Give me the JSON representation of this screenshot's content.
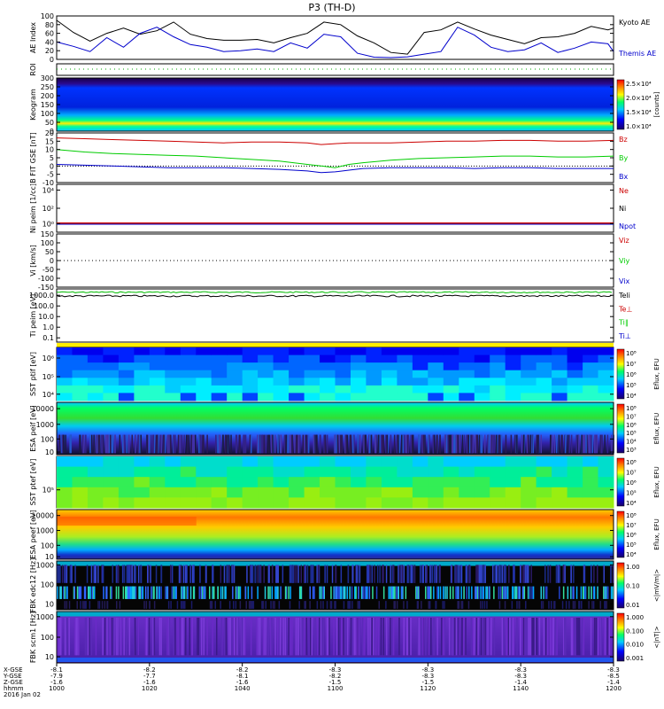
{
  "title": "P3 (TH-D)",
  "chart_data": [
    {
      "type": "line",
      "panel": "ae-index",
      "ylabel": "AE Index",
      "ylim": [
        0,
        100
      ],
      "yticks": [
        "100",
        "80",
        "60",
        "40",
        "20",
        "0"
      ],
      "x_minutes": [
        1000,
        1006,
        1012,
        1018,
        1024,
        1030,
        1036,
        1042,
        1048,
        1054,
        1060,
        1066,
        1072,
        1078,
        1084,
        1090,
        1096,
        1102,
        1108,
        1114,
        1120,
        1126,
        1132,
        1138,
        1144,
        1150,
        1156,
        1162,
        1168,
        1174,
        1180,
        1186,
        1192,
        1198,
        1200
      ],
      "series": [
        {
          "name": "Kyoto AE",
          "color": "#000000",
          "values": [
            90,
            62,
            42,
            60,
            72,
            58,
            66,
            86,
            58,
            48,
            44,
            44,
            46,
            38,
            50,
            60,
            86,
            80,
            54,
            38,
            16,
            12,
            62,
            68,
            86,
            70,
            56,
            46,
            36,
            50,
            52,
            60,
            76,
            68,
            72
          ]
        },
        {
          "name": "Themis AE",
          "color": "#0000cc",
          "values": [
            40,
            30,
            18,
            50,
            28,
            60,
            74,
            52,
            34,
            28,
            18,
            20,
            24,
            18,
            38,
            26,
            58,
            52,
            14,
            5,
            4,
            6,
            12,
            18,
            74,
            56,
            28,
            18,
            22,
            38,
            16,
            26,
            40,
            36,
            18
          ]
        }
      ]
    },
    {
      "type": "line",
      "panel": "roi",
      "ylabel": "ROI",
      "series": [
        {
          "name": "ROI",
          "color": "#00aa00",
          "values": [
            0,
            0
          ]
        }
      ]
    },
    {
      "type": "heatmap",
      "panel": "keogram",
      "ylabel": "Keogram",
      "ylim": [
        0,
        300
      ],
      "yticks": [
        "300",
        "250",
        "200",
        "150",
        "100",
        "50",
        "0"
      ],
      "colorbar": {
        "unit": "[counts]",
        "ticks": [
          "2.5×10⁴",
          "2.0×10⁴",
          "1.5×10⁴",
          "1.0×10⁴"
        ]
      }
    },
    {
      "type": "line",
      "panel": "b-field",
      "ylabel": "B FIT GSE [nT]",
      "ylim": [
        -10,
        20
      ],
      "yticks": [
        "20",
        "15",
        "10",
        "5",
        "0",
        "-5",
        "-10"
      ],
      "x_minutes": [
        1000,
        1010,
        1020,
        1030,
        1040,
        1050,
        1060,
        1070,
        1080,
        1090,
        1095,
        1100,
        1105,
        1110,
        1120,
        1130,
        1140,
        1150,
        1160,
        1170,
        1180,
        1190,
        1200
      ],
      "series": [
        {
          "name": "Bz",
          "color": "#cc0000",
          "values": [
            17,
            16.5,
            16,
            15.5,
            15,
            14.5,
            14,
            14.5,
            14.5,
            14,
            13,
            13.5,
            14,
            14,
            14,
            14.5,
            15,
            15,
            15.5,
            15.5,
            15,
            15,
            15.5
          ]
        },
        {
          "name": "By",
          "color": "#00cc00",
          "values": [
            10,
            8.5,
            7.5,
            7,
            6.5,
            6,
            5,
            4,
            3,
            1,
            0,
            -1,
            1,
            2,
            3.5,
            4.5,
            5,
            5.5,
            6,
            6,
            5.5,
            5.5,
            6
          ]
        },
        {
          "name": "Bx",
          "color": "#0000cc",
          "values": [
            1,
            0.5,
            0,
            -0.5,
            -1,
            -1,
            -1,
            -1.5,
            -2,
            -3,
            -4,
            -3.5,
            -2.5,
            -1.5,
            -1,
            -1,
            -1,
            -1.5,
            -1,
            -1,
            -1.5,
            -1.5,
            -1.5
          ]
        }
      ]
    },
    {
      "type": "line",
      "panel": "density",
      "ylabel": "Ni peim [1/cc]",
      "yticks": [
        "10⁴",
        "10²",
        "10⁰"
      ],
      "series": [
        {
          "name": "Ne",
          "color": "#cc0000",
          "values": [
            1,
            1
          ]
        },
        {
          "name": "Ni",
          "color": "#000000",
          "values": [
            1,
            1
          ]
        },
        {
          "name": "Npot",
          "color": "#0000cc",
          "values": [
            1,
            1
          ]
        }
      ]
    },
    {
      "type": "line",
      "panel": "velocity",
      "ylabel": "Vi [km/s]",
      "ylim": [
        -150,
        150
      ],
      "yticks": [
        "150",
        "100",
        "50",
        "0",
        "-50",
        "-100",
        "-150"
      ],
      "series": [
        {
          "name": "Viz",
          "color": "#cc0000",
          "values": [
            0,
            0
          ]
        },
        {
          "name": "Viy",
          "color": "#00cc00",
          "values": [
            0,
            0
          ]
        },
        {
          "name": "Vix",
          "color": "#0000cc",
          "values": [
            0,
            0
          ]
        }
      ]
    },
    {
      "type": "line",
      "panel": "temperature",
      "ylabel": "Ti peim [eV]",
      "yticks": [
        "1000.0",
        "100.0",
        "10.0",
        "1.0",
        "0.1"
      ],
      "series": [
        {
          "name": "Teli",
          "color": "#000000",
          "values": [
            1200,
            1200
          ]
        },
        {
          "name": "Te⊥",
          "color": "#cc0000",
          "values": [
            2000,
            2000
          ]
        },
        {
          "name": "Ti∥",
          "color": "#00cc00",
          "values": [
            2200,
            2200
          ]
        },
        {
          "name": "Ti⊥",
          "color": "#0000cc",
          "values": [
            2000,
            2000
          ]
        }
      ]
    },
    {
      "type": "heatmap",
      "panel": "sst-ions",
      "ylabel": "SST ptif [eV]",
      "yticks": [
        "10⁶",
        "10⁵",
        "10⁴"
      ],
      "colorbar": {
        "unit": "Eflux, EFU",
        "ticks": [
          "10⁸",
          "10⁷",
          "10⁶",
          "10⁵",
          "10⁴"
        ]
      }
    },
    {
      "type": "heatmap",
      "panel": "esa-ions",
      "ylabel": "ESA peif [eV]",
      "yticks": [
        "10000",
        "1000",
        "100",
        "10"
      ],
      "colorbar": {
        "unit": "Eflux, EFU",
        "ticks": [
          "10⁸",
          "10⁷",
          "10⁶",
          "10⁵",
          "10⁴",
          "10³"
        ]
      }
    },
    {
      "type": "heatmap",
      "panel": "sst-electrons",
      "ylabel": "SST ptef [eV]",
      "yticks": [
        "10⁵"
      ],
      "colorbar": {
        "unit": "Eflux, EFU",
        "ticks": [
          "10⁸",
          "10⁷",
          "10⁶",
          "10⁵",
          "10⁴"
        ]
      }
    },
    {
      "type": "heatmap",
      "panel": "esa-electrons",
      "ylabel": "ESA peef [eV]",
      "yticks": [
        "10000",
        "1000",
        "100",
        "10"
      ],
      "colorbar": {
        "unit": "Eflux, EFU",
        "ticks": [
          "10⁸",
          "10⁷",
          "10⁶",
          "10⁵",
          "10⁴"
        ]
      }
    },
    {
      "type": "heatmap",
      "panel": "fbk-edc",
      "ylabel": "FBK edc12 [Hz]",
      "yticks": [
        "1000",
        "100",
        "10"
      ],
      "colorbar": {
        "unit": "<|mV/m|>",
        "ticks": [
          "1.00",
          "0.10",
          "0.01"
        ]
      }
    },
    {
      "type": "heatmap",
      "panel": "fbk-scm",
      "ylabel": "FBK scm1 [Hz]",
      "yticks": [
        "1000",
        "100",
        "10"
      ],
      "colorbar": {
        "unit": "<|nT|>",
        "ticks": [
          "1.000",
          "0.100",
          "0.010",
          "0.001"
        ]
      }
    }
  ],
  "x_axis": {
    "row_labels": [
      "X-GSE",
      "Y-GSE",
      "Z-GSE",
      "hhmm",
      "2016 Jan 02"
    ],
    "ticks": [
      {
        "values": [
          "-8.1",
          "-7.9",
          "-1.6",
          "1000"
        ]
      },
      {
        "values": [
          "-8.2",
          "-7.7",
          "-1.6",
          "1020"
        ]
      },
      {
        "values": [
          "-8.2",
          "-8.1",
          "-1.6",
          "1040"
        ]
      },
      {
        "values": [
          "-8.3",
          "-8.2",
          "-1.5",
          "1100"
        ]
      },
      {
        "values": [
          "-8.3",
          "-8.3",
          "-1.5",
          "1120"
        ]
      },
      {
        "values": [
          "-8.3",
          "-8.3",
          "-1.4",
          "1140"
        ]
      },
      {
        "values": [
          "-8.3",
          "-8.5",
          "-1.4",
          "1200"
        ]
      }
    ]
  },
  "colors": {
    "frame": "#000000",
    "background": "#ffffff",
    "roi_dots": "#00aa00",
    "sst_strip": "#ffee00"
  }
}
